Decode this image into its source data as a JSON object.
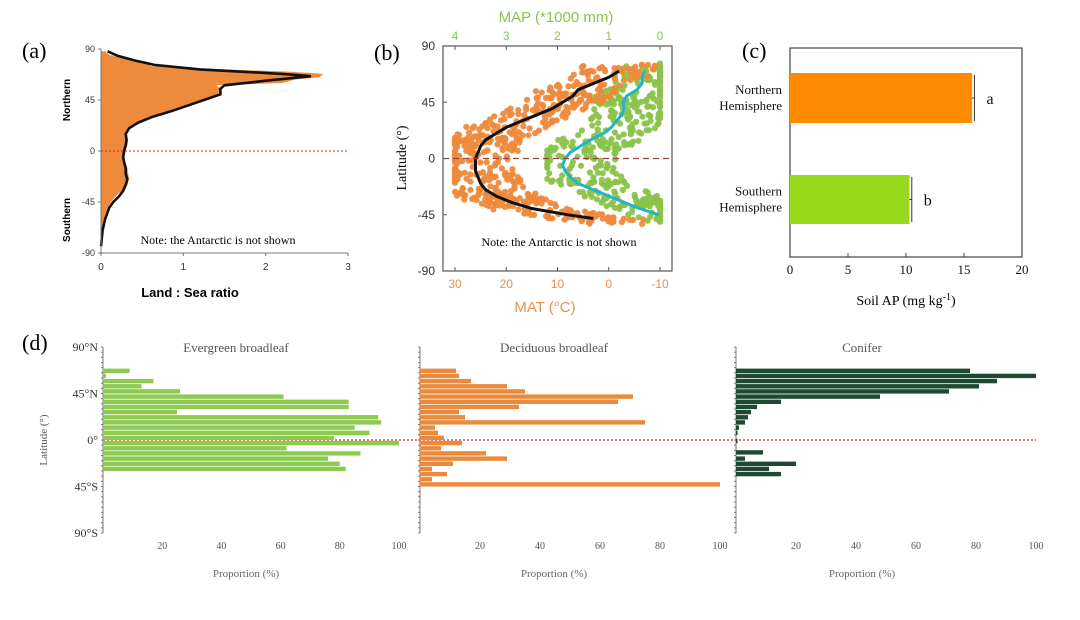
{
  "colors": {
    "orange": "#EE8A3C",
    "green_a": "#8BCF4A",
    "green_c": "#98D91C",
    "orange_c": "#FF8A00",
    "teal": "#26B3C9",
    "conifer": "#1E4A34",
    "decid": "#EA8A3C",
    "evergreen": "#8CCB50",
    "red_dot": "#D22",
    "map_label": "#8BC34A",
    "mat_label": "#E8904A",
    "axis": "#555555"
  },
  "chart_data": [
    {
      "panel": "a",
      "panel_label": "(a)",
      "type": "area",
      "xlabel": "Land : Sea ratio",
      "ylabel_top": "Northern",
      "ylabel_bottom": "Southern",
      "xlim": [
        0,
        3
      ],
      "ylim": [
        -90,
        90
      ],
      "xticks": [
        "0",
        "1",
        "2",
        "3"
      ],
      "yticks": [
        "90",
        "45",
        "0",
        "-45",
        "-90"
      ],
      "note": "Note: the Antarctic is not shown",
      "area_points": [
        [
          -84,
          0.0
        ],
        [
          -70,
          0.01
        ],
        [
          -60,
          0.03
        ],
        [
          -50,
          0.08
        ],
        [
          -45,
          0.12
        ],
        [
          -40,
          0.18
        ],
        [
          -35,
          0.25
        ],
        [
          -30,
          0.32
        ],
        [
          -25,
          0.34
        ],
        [
          -20,
          0.33
        ],
        [
          -15,
          0.32
        ],
        [
          -10,
          0.3
        ],
        [
          -5,
          0.28
        ],
        [
          0,
          0.3
        ],
        [
          5,
          0.32
        ],
        [
          10,
          0.33
        ],
        [
          15,
          0.3
        ],
        [
          20,
          0.32
        ],
        [
          25,
          0.42
        ],
        [
          30,
          0.6
        ],
        [
          35,
          0.85
        ],
        [
          40,
          1.05
        ],
        [
          45,
          1.3
        ],
        [
          50,
          1.42
        ],
        [
          55,
          1.45
        ],
        [
          58,
          1.4
        ],
        [
          60,
          2.2
        ],
        [
          63,
          2.35
        ],
        [
          65,
          2.65
        ],
        [
          68,
          2.7
        ],
        [
          70,
          2.3
        ],
        [
          72,
          1.5
        ],
        [
          75,
          0.6
        ],
        [
          78,
          0.6
        ],
        [
          80,
          0.4
        ],
        [
          82,
          0.25
        ],
        [
          85,
          0.1
        ],
        [
          88,
          0.05
        ]
      ],
      "line_points": [
        [
          -84,
          0.0
        ],
        [
          -70,
          0.02
        ],
        [
          -60,
          0.05
        ],
        [
          -50,
          0.1
        ],
        [
          -45,
          0.15
        ],
        [
          -40,
          0.22
        ],
        [
          -35,
          0.27
        ],
        [
          -30,
          0.3
        ],
        [
          -25,
          0.32
        ],
        [
          -20,
          0.3
        ],
        [
          -15,
          0.3
        ],
        [
          -10,
          0.28
        ],
        [
          -5,
          0.27
        ],
        [
          0,
          0.28
        ],
        [
          5,
          0.3
        ],
        [
          10,
          0.31
        ],
        [
          15,
          0.3
        ],
        [
          20,
          0.34
        ],
        [
          25,
          0.45
        ],
        [
          30,
          0.62
        ],
        [
          35,
          0.85
        ],
        [
          40,
          1.05
        ],
        [
          45,
          1.25
        ],
        [
          50,
          1.45
        ],
        [
          55,
          1.45
        ],
        [
          58,
          1.5
        ],
        [
          62,
          2.0
        ],
        [
          66,
          2.55
        ],
        [
          68,
          2.2
        ],
        [
          72,
          1.2
        ],
        [
          76,
          0.65
        ],
        [
          80,
          0.4
        ],
        [
          84,
          0.2
        ],
        [
          88,
          0.08
        ]
      ]
    },
    {
      "panel": "b",
      "panel_label": "(b)",
      "type": "scatter",
      "ylabel": "Latitude (°)",
      "top_axis_label": "MAP (*1000 mm)",
      "bottom_axis_label": "MAT (°C)",
      "top_ticks": [
        "4",
        "3",
        "2",
        "1",
        "0"
      ],
      "bottom_ticks": [
        "30",
        "20",
        "10",
        "0",
        "-10"
      ],
      "yticks": [
        "90",
        "45",
        "0",
        "-45",
        "-90"
      ],
      "note": "Note: the Antarctic is not shown",
      "mat_line": [
        [
          -48,
          3
        ],
        [
          -45,
          8
        ],
        [
          -40,
          15
        ],
        [
          -35,
          19
        ],
        [
          -30,
          22
        ],
        [
          -25,
          24
        ],
        [
          -20,
          25
        ],
        [
          -15,
          25.5
        ],
        [
          -10,
          26
        ],
        [
          -5,
          26
        ],
        [
          0,
          26
        ],
        [
          5,
          25.5
        ],
        [
          10,
          25
        ],
        [
          15,
          24
        ],
        [
          20,
          22
        ],
        [
          25,
          20
        ],
        [
          30,
          17
        ],
        [
          35,
          14
        ],
        [
          40,
          11
        ],
        [
          45,
          9
        ],
        [
          50,
          7
        ],
        [
          55,
          6
        ],
        [
          60,
          3
        ],
        [
          65,
          0
        ],
        [
          70,
          -2
        ]
      ],
      "map_line": [
        [
          -45,
          0.02
        ],
        [
          -40,
          0.4
        ],
        [
          -35,
          0.7
        ],
        [
          -30,
          1.0
        ],
        [
          -25,
          1.3
        ],
        [
          -20,
          1.6
        ],
        [
          -15,
          1.75
        ],
        [
          -10,
          1.85
        ],
        [
          -5,
          1.9
        ],
        [
          0,
          1.85
        ],
        [
          5,
          1.75
        ],
        [
          10,
          1.55
        ],
        [
          15,
          1.35
        ],
        [
          20,
          1.1
        ],
        [
          25,
          0.95
        ],
        [
          30,
          0.85
        ],
        [
          35,
          0.75
        ],
        [
          40,
          0.7
        ],
        [
          45,
          0.72
        ],
        [
          50,
          0.65
        ],
        [
          55,
          0.45
        ],
        [
          60,
          0.35
        ],
        [
          65,
          0.35
        ],
        [
          70,
          0.3
        ]
      ]
    },
    {
      "panel": "c",
      "panel_label": "(c)",
      "type": "bar",
      "xlabel": "Soil AP (mg kg",
      "xlabel_sup": "-1",
      "xlabel_end": ")",
      "xlim": [
        0,
        20
      ],
      "xticks": [
        "0",
        "5",
        "10",
        "15",
        "20"
      ],
      "categories": [
        "Northern Hemisphere",
        "Southern Hemisphere"
      ],
      "category_lines": [
        [
          "Northern",
          "Hemisphere"
        ],
        [
          "Southern",
          "Hemisphere"
        ]
      ],
      "values": [
        15.7,
        10.3
      ],
      "errors": [
        0.2,
        0.2
      ],
      "letters": [
        "a",
        "b"
      ]
    },
    {
      "panel": "d",
      "panel_label": "(d)",
      "type": "bar",
      "ylabel": "Latitude (°)",
      "yticks": [
        "90°N",
        "45°N",
        "0°",
        "45°S",
        "90°S"
      ],
      "xticks": [
        "20",
        "40",
        "60",
        "80",
        "100"
      ],
      "xlabel": "Proportion (%)",
      "series": [
        {
          "name": "Evergreen broadleaf",
          "bars": [
            [
              67,
              9
            ],
            [
              62,
              1
            ],
            [
              57,
              17
            ],
            [
              52,
              13
            ],
            [
              47,
              26
            ],
            [
              42,
              61
            ],
            [
              37,
              83
            ],
            [
              32,
              83
            ],
            [
              27,
              25
            ],
            [
              22,
              93
            ],
            [
              17,
              94
            ],
            [
              12,
              85
            ],
            [
              7,
              90
            ],
            [
              2,
              78
            ],
            [
              -3,
              100
            ],
            [
              -8,
              62
            ],
            [
              -13,
              87
            ],
            [
              -18,
              76
            ],
            [
              -23,
              80
            ],
            [
              -28,
              82
            ]
          ]
        },
        {
          "name": "Deciduous broadleaf",
          "bars": [
            [
              67,
              12
            ],
            [
              62,
              13
            ],
            [
              57,
              17
            ],
            [
              52,
              29
            ],
            [
              47,
              35
            ],
            [
              42,
              71
            ],
            [
              37,
              66
            ],
            [
              32,
              33
            ],
            [
              27,
              13
            ],
            [
              22,
              15
            ],
            [
              17,
              75
            ],
            [
              12,
              5
            ],
            [
              7,
              6
            ],
            [
              2,
              8
            ],
            [
              -3,
              14
            ],
            [
              -8,
              7
            ],
            [
              -13,
              22
            ],
            [
              -18,
              29
            ],
            [
              -23,
              11
            ],
            [
              -28,
              4
            ],
            [
              -33,
              9
            ],
            [
              -38,
              4
            ],
            [
              -43,
              100
            ]
          ]
        },
        {
          "name": "Conifer",
          "bars": [
            [
              67,
              78
            ],
            [
              62,
              100
            ],
            [
              57,
              87
            ],
            [
              52,
              81
            ],
            [
              47,
              71
            ],
            [
              42,
              48
            ],
            [
              37,
              15
            ],
            [
              32,
              7
            ],
            [
              27,
              5
            ],
            [
              22,
              4
            ],
            [
              17,
              3
            ],
            [
              12,
              1
            ],
            [
              7,
              0.5
            ],
            [
              -1,
              0.5
            ],
            [
              -12,
              9
            ],
            [
              -18,
              3
            ],
            [
              -23,
              20
            ],
            [
              -28,
              11
            ],
            [
              -33,
              15
            ]
          ]
        }
      ]
    }
  ]
}
